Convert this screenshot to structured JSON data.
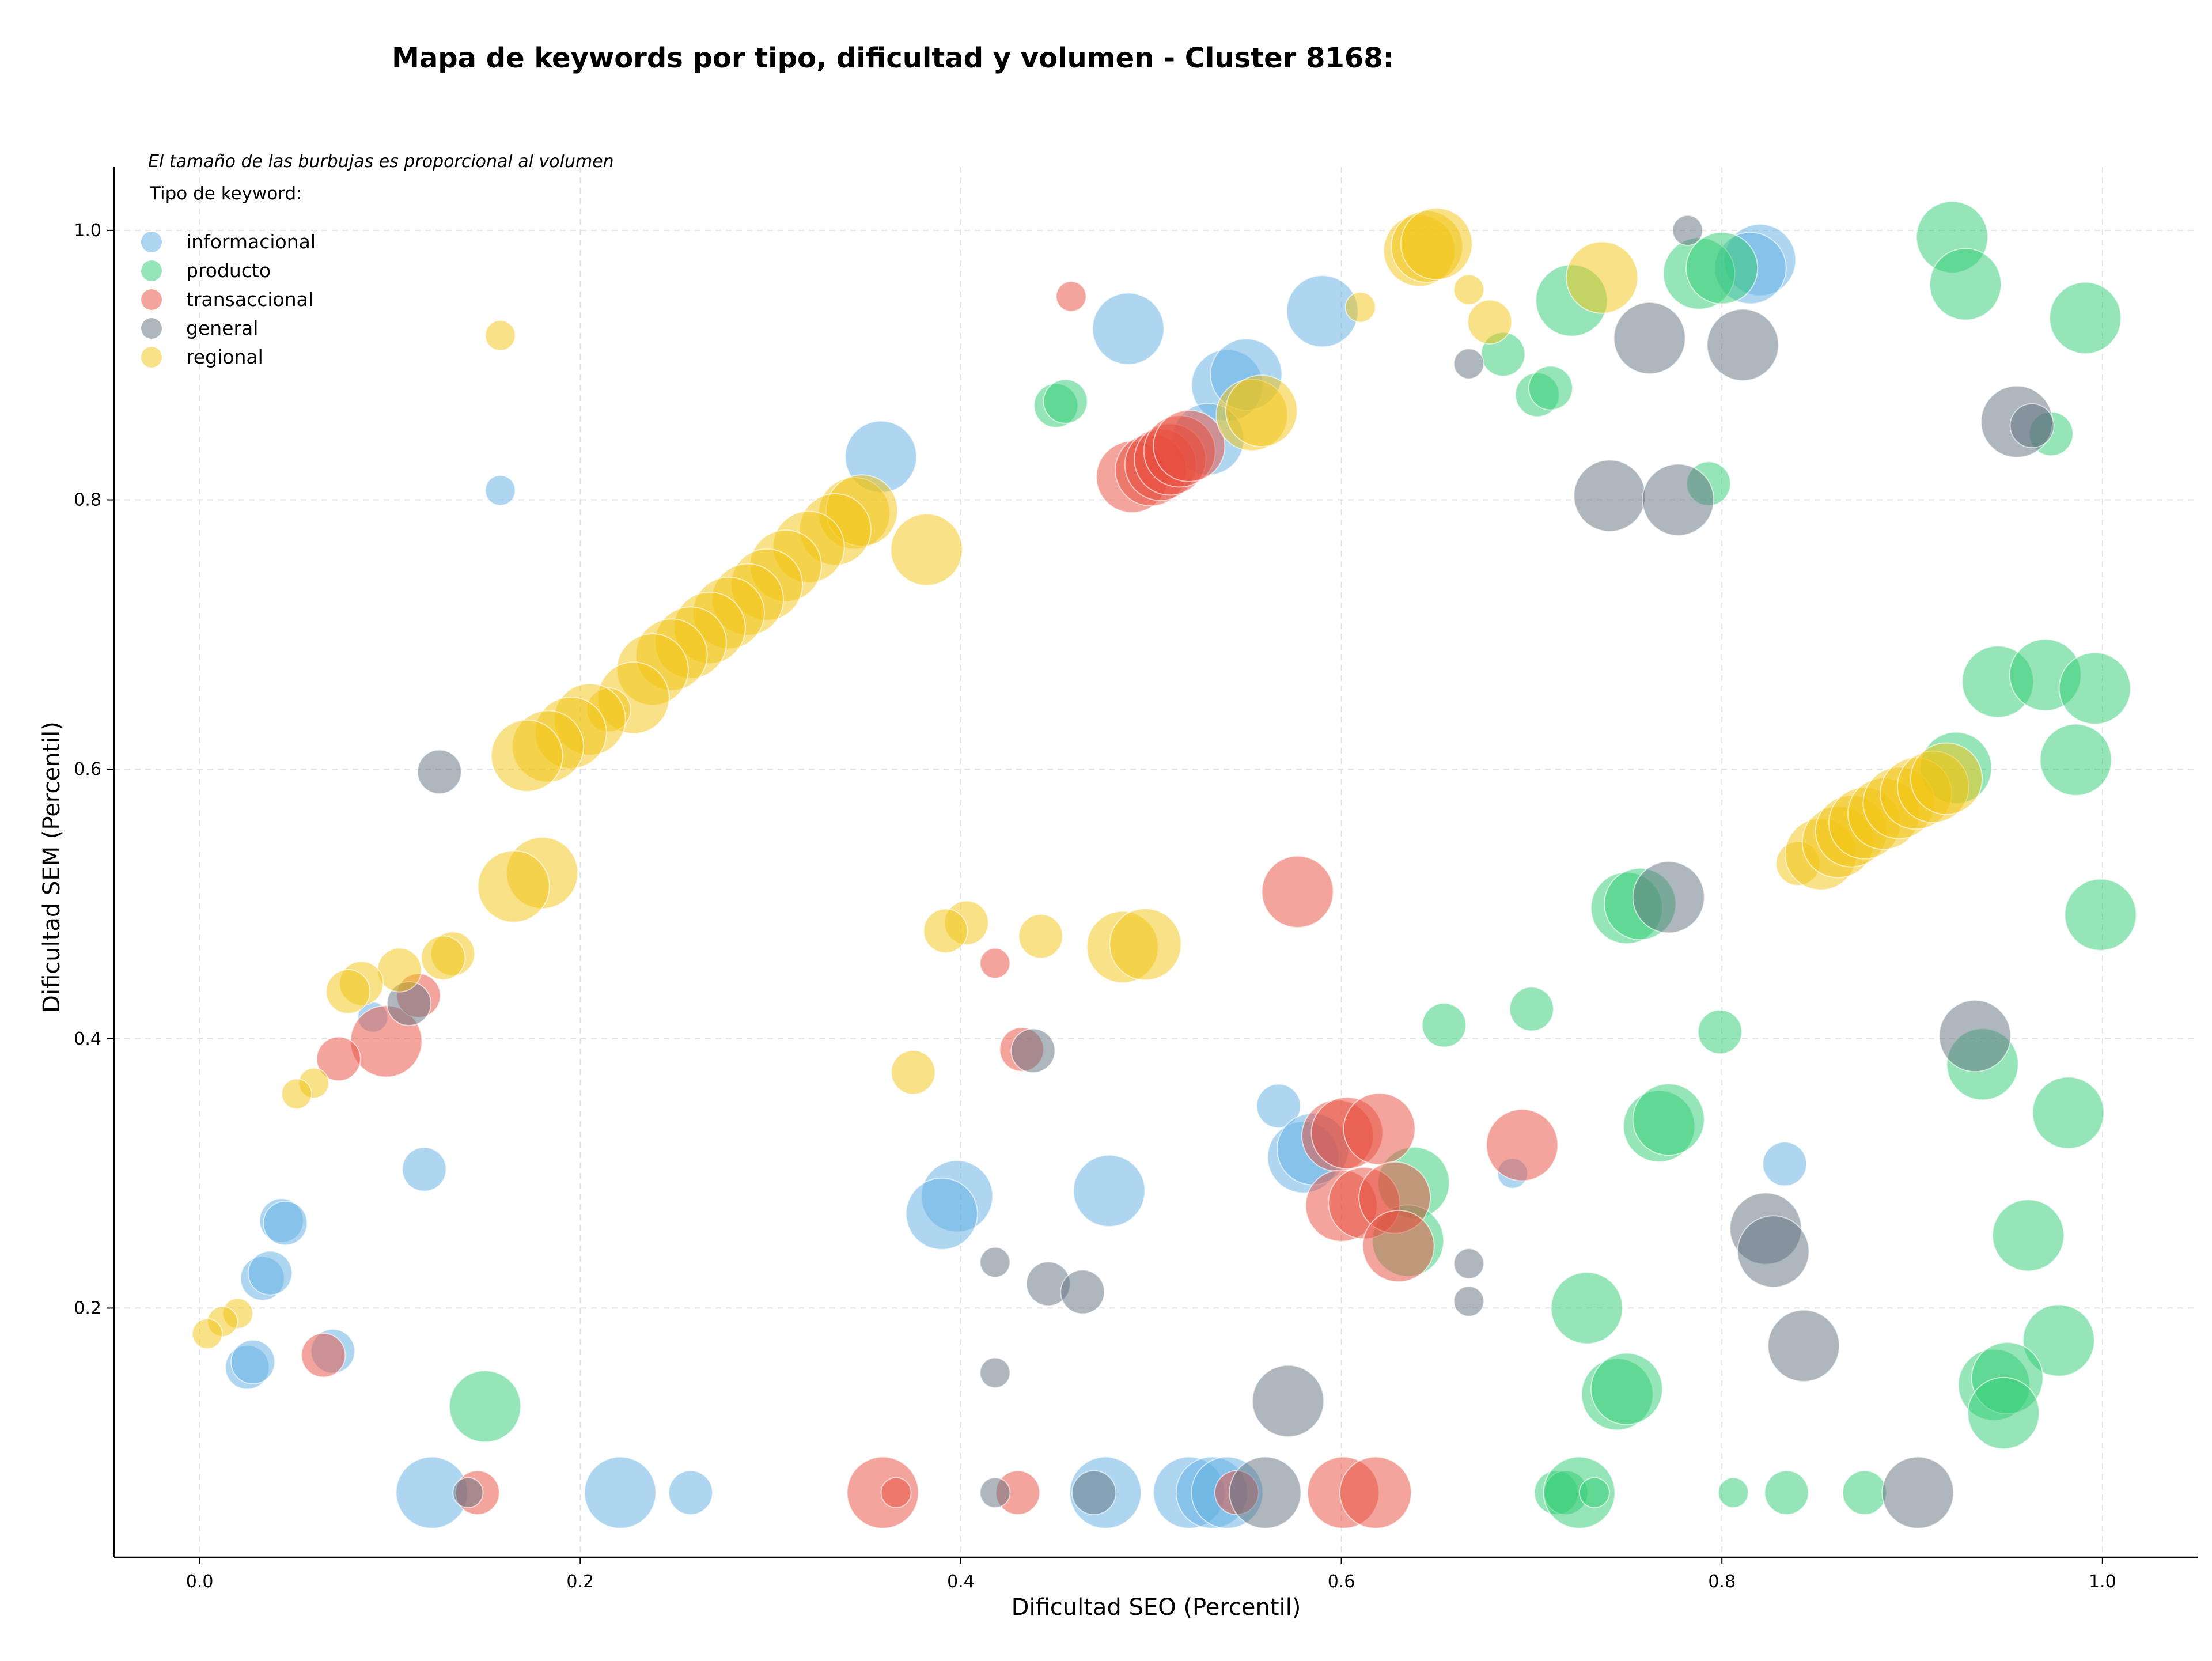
{
  "chart_data": {
    "type": "scatter",
    "title": "Mapa de keywords por tipo, dificultad y volumen - Cluster 8168:",
    "xlabel": "Dificultad SEO (Percentil)",
    "ylabel": "Dificultad SEM (Percentil)",
    "xlim": [
      -0.045,
      1.05
    ],
    "ylim": [
      0.015,
      1.047
    ],
    "xticks": [
      "0.0",
      "0.2",
      "0.4",
      "0.6",
      "0.8",
      "1.0"
    ],
    "yticks": [
      "0.2",
      "0.4",
      "0.6",
      "0.8",
      "1.0"
    ],
    "grid": true,
    "note": "El tamaño de las burbujas es proporcional al volumen",
    "legend": {
      "title": "Tipo de keyword:",
      "position": "top-left"
    },
    "series": [
      {
        "name": "informacional",
        "color": "#5DADE2",
        "points": [
          [
            0.158,
            0.807,
            1
          ],
          [
            0.358,
            0.832,
            3
          ],
          [
            0.488,
            0.927,
            3
          ],
          [
            0.59,
            0.94,
            3
          ],
          [
            0.54,
            0.885,
            3
          ],
          [
            0.55,
            0.893,
            3
          ],
          [
            0.53,
            0.845,
            3
          ],
          [
            0.82,
            0.978,
            3
          ],
          [
            0.815,
            0.972,
            3
          ],
          [
            0.567,
            0.35,
            2
          ],
          [
            0.58,
            0.312,
            3
          ],
          [
            0.585,
            0.318,
            3
          ],
          [
            0.398,
            0.283,
            3
          ],
          [
            0.39,
            0.27,
            3
          ],
          [
            0.478,
            0.287,
            3
          ],
          [
            0.69,
            0.3,
            1
          ],
          [
            0.833,
            0.307,
            2
          ],
          [
            0.118,
            0.303,
            2
          ],
          [
            0.043,
            0.265,
            2
          ],
          [
            0.045,
            0.263,
            2
          ],
          [
            0.033,
            0.222,
            2
          ],
          [
            0.037,
            0.226,
            2
          ],
          [
            0.025,
            0.156,
            2
          ],
          [
            0.028,
            0.16,
            2
          ],
          [
            0.07,
            0.168,
            2
          ],
          [
            0.091,
            0.416,
            1
          ],
          [
            0.122,
            0.063,
            3
          ],
          [
            0.221,
            0.063,
            3
          ],
          [
            0.258,
            0.063,
            2
          ],
          [
            0.476,
            0.063,
            3
          ],
          [
            0.52,
            0.063,
            3
          ],
          [
            0.532,
            0.063,
            3
          ],
          [
            0.54,
            0.063,
            3
          ]
        ]
      },
      {
        "name": "producto",
        "color": "#2ECC71",
        "points": [
          [
            0.921,
            0.995,
            3
          ],
          [
            0.928,
            0.96,
            3
          ],
          [
            0.991,
            0.935,
            3
          ],
          [
            0.721,
            0.948,
            3
          ],
          [
            0.788,
            0.968,
            3
          ],
          [
            0.8,
            0.972,
            3
          ],
          [
            0.685,
            0.908,
            2
          ],
          [
            0.703,
            0.878,
            2
          ],
          [
            0.71,
            0.883,
            2
          ],
          [
            0.45,
            0.87,
            2
          ],
          [
            0.455,
            0.873,
            2
          ],
          [
            0.793,
            0.812,
            2
          ],
          [
            0.973,
            0.849,
            2
          ],
          [
            0.945,
            0.665,
            3
          ],
          [
            0.97,
            0.67,
            3
          ],
          [
            0.996,
            0.66,
            3
          ],
          [
            0.923,
            0.601,
            3
          ],
          [
            0.986,
            0.607,
            3
          ],
          [
            0.999,
            0.492,
            3
          ],
          [
            0.75,
            0.497,
            3
          ],
          [
            0.757,
            0.5,
            3
          ],
          [
            0.654,
            0.41,
            2
          ],
          [
            0.7,
            0.422,
            2
          ],
          [
            0.799,
            0.405,
            2
          ],
          [
            0.937,
            0.381,
            3
          ],
          [
            0.767,
            0.335,
            3
          ],
          [
            0.772,
            0.34,
            3
          ],
          [
            0.982,
            0.345,
            3
          ],
          [
            0.638,
            0.293,
            3
          ],
          [
            0.635,
            0.25,
            3
          ],
          [
            0.961,
            0.254,
            3
          ],
          [
            0.729,
            0.2,
            3
          ],
          [
            0.977,
            0.176,
            3
          ],
          [
            0.745,
            0.136,
            3
          ],
          [
            0.75,
            0.14,
            3
          ],
          [
            0.943,
            0.143,
            3
          ],
          [
            0.95,
            0.148,
            3
          ],
          [
            0.948,
            0.122,
            3
          ],
          [
            0.15,
            0.127,
            3
          ],
          [
            0.713,
            0.063,
            2
          ],
          [
            0.718,
            0.063,
            2
          ],
          [
            0.725,
            0.063,
            3
          ],
          [
            0.733,
            0.063,
            1
          ],
          [
            0.806,
            0.063,
            1
          ],
          [
            0.834,
            0.063,
            2
          ],
          [
            0.875,
            0.063,
            2
          ]
        ]
      },
      {
        "name": "transaccional",
        "color": "#E74C3C",
        "points": [
          [
            0.458,
            0.951,
            1
          ],
          [
            0.49,
            0.817,
            3
          ],
          [
            0.5,
            0.822,
            3
          ],
          [
            0.505,
            0.826,
            3
          ],
          [
            0.51,
            0.83,
            3
          ],
          [
            0.515,
            0.836,
            3
          ],
          [
            0.52,
            0.84,
            3
          ],
          [
            0.577,
            0.509,
            3
          ],
          [
            0.598,
            0.328,
            3
          ],
          [
            0.603,
            0.33,
            3
          ],
          [
            0.62,
            0.333,
            3
          ],
          [
            0.6,
            0.276,
            3
          ],
          [
            0.612,
            0.278,
            3
          ],
          [
            0.628,
            0.282,
            3
          ],
          [
            0.63,
            0.246,
            3
          ],
          [
            0.695,
            0.321,
            3
          ],
          [
            0.418,
            0.456,
            1
          ],
          [
            0.432,
            0.392,
            2
          ],
          [
            0.098,
            0.398,
            3
          ],
          [
            0.115,
            0.432,
            2
          ],
          [
            0.073,
            0.385,
            2
          ],
          [
            0.065,
            0.165,
            2
          ],
          [
            0.146,
            0.063,
            2
          ],
          [
            0.359,
            0.063,
            3
          ],
          [
            0.366,
            0.063,
            1
          ],
          [
            0.43,
            0.063,
            2
          ],
          [
            0.545,
            0.063,
            2
          ],
          [
            0.601,
            0.063,
            3
          ],
          [
            0.618,
            0.063,
            3
          ]
        ]
      },
      {
        "name": "general",
        "color": "#5D6D7E",
        "points": [
          [
            0.782,
            1.0,
            1
          ],
          [
            0.762,
            0.92,
            3
          ],
          [
            0.811,
            0.915,
            3
          ],
          [
            0.667,
            0.901,
            1
          ],
          [
            0.955,
            0.858,
            3
          ],
          [
            0.963,
            0.855,
            2
          ],
          [
            0.741,
            0.803,
            3
          ],
          [
            0.777,
            0.8,
            3
          ],
          [
            0.772,
            0.505,
            3
          ],
          [
            0.126,
            0.598,
            2
          ],
          [
            0.11,
            0.426,
            2
          ],
          [
            0.438,
            0.391,
            2
          ],
          [
            0.933,
            0.402,
            3
          ],
          [
            0.667,
            0.233,
            1
          ],
          [
            0.667,
            0.205,
            1
          ],
          [
            0.418,
            0.234,
            1
          ],
          [
            0.446,
            0.218,
            2
          ],
          [
            0.464,
            0.212,
            2
          ],
          [
            0.823,
            0.259,
            3
          ],
          [
            0.827,
            0.242,
            3
          ],
          [
            0.843,
            0.172,
            3
          ],
          [
            0.572,
            0.131,
            3
          ],
          [
            0.418,
            0.152,
            1
          ],
          [
            0.141,
            0.063,
            1
          ],
          [
            0.418,
            0.063,
            1
          ],
          [
            0.47,
            0.063,
            2
          ],
          [
            0.56,
            0.063,
            3
          ],
          [
            0.903,
            0.063,
            3
          ]
        ]
      },
      {
        "name": "regional",
        "color": "#F1C40F",
        "points": [
          [
            0.158,
            0.922,
            1
          ],
          [
            0.641,
            0.985,
            3
          ],
          [
            0.645,
            0.988,
            3
          ],
          [
            0.65,
            0.99,
            3
          ],
          [
            0.61,
            0.943,
            1
          ],
          [
            0.667,
            0.956,
            1
          ],
          [
            0.678,
            0.932,
            2
          ],
          [
            0.737,
            0.965,
            3
          ],
          [
            0.553,
            0.863,
            3
          ],
          [
            0.558,
            0.866,
            3
          ],
          [
            0.382,
            0.763,
            3
          ],
          [
            0.344,
            0.79,
            3
          ],
          [
            0.348,
            0.792,
            3
          ],
          [
            0.334,
            0.778,
            3
          ],
          [
            0.32,
            0.765,
            3
          ],
          [
            0.308,
            0.751,
            3
          ],
          [
            0.298,
            0.737,
            3
          ],
          [
            0.288,
            0.726,
            3
          ],
          [
            0.278,
            0.716,
            3
          ],
          [
            0.268,
            0.705,
            3
          ],
          [
            0.258,
            0.694,
            3
          ],
          [
            0.248,
            0.685,
            3
          ],
          [
            0.238,
            0.674,
            3
          ],
          [
            0.228,
            0.653,
            3
          ],
          [
            0.215,
            0.644,
            2
          ],
          [
            0.205,
            0.637,
            3
          ],
          [
            0.195,
            0.627,
            3
          ],
          [
            0.183,
            0.617,
            3
          ],
          [
            0.172,
            0.61,
            3
          ],
          [
            0.18,
            0.523,
            3
          ],
          [
            0.165,
            0.513,
            3
          ],
          [
            0.133,
            0.463,
            2
          ],
          [
            0.128,
            0.46,
            2
          ],
          [
            0.105,
            0.451,
            2
          ],
          [
            0.085,
            0.441,
            2
          ],
          [
            0.078,
            0.435,
            2
          ],
          [
            0.06,
            0.367,
            1
          ],
          [
            0.051,
            0.359,
            1
          ],
          [
            0.02,
            0.196,
            1
          ],
          [
            0.012,
            0.19,
            1
          ],
          [
            0.004,
            0.181,
            1
          ],
          [
            0.403,
            0.486,
            2
          ],
          [
            0.392,
            0.48,
            2
          ],
          [
            0.442,
            0.476,
            2
          ],
          [
            0.375,
            0.375,
            2
          ],
          [
            0.485,
            0.468,
            3
          ],
          [
            0.497,
            0.47,
            3
          ],
          [
            0.84,
            0.53,
            2
          ],
          [
            0.852,
            0.537,
            3
          ],
          [
            0.861,
            0.546,
            3
          ],
          [
            0.868,
            0.554,
            3
          ],
          [
            0.875,
            0.56,
            3
          ],
          [
            0.885,
            0.567,
            3
          ],
          [
            0.893,
            0.575,
            3
          ],
          [
            0.902,
            0.582,
            3
          ],
          [
            0.911,
            0.587,
            3
          ],
          [
            0.918,
            0.593,
            3
          ]
        ]
      }
    ]
  }
}
